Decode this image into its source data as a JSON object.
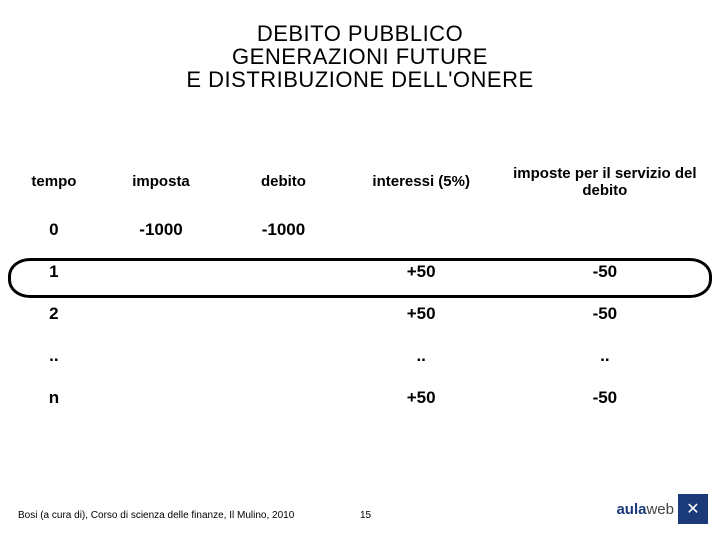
{
  "title": {
    "line1": "DEBITO PUBBLICO",
    "line2": "GENERAZIONI FUTURE",
    "line3": "E DISTRIBUZIONE DELL'ONERE"
  },
  "table": {
    "headers": {
      "tempo": "tempo",
      "imposta": "imposta",
      "debito": "debito",
      "interessi": "interessi (5%)",
      "imposte_servizio": "imposte per il servizio del debito"
    },
    "rows": [
      {
        "tempo": "0",
        "imposta": "-1000",
        "debito": "-1000",
        "interessi": "",
        "imposte_servizio": ""
      },
      {
        "tempo": "1",
        "imposta": "",
        "debito": "",
        "interessi": "+50",
        "imposte_servizio": "-50"
      },
      {
        "tempo": "2",
        "imposta": "",
        "debito": "",
        "interessi": "+50",
        "imposte_servizio": "-50"
      },
      {
        "tempo": "..",
        "imposta": "",
        "debito": "",
        "interessi": "..",
        "imposte_servizio": ".."
      },
      {
        "tempo": "n",
        "imposta": "",
        "debito": "",
        "interessi": "+50",
        "imposte_servizio": "-50"
      }
    ],
    "highlight_row_index": 1,
    "header_fontsize": 15,
    "cell_fontsize": 17,
    "text_color": "#000000",
    "highlight_border_color": "#000000",
    "highlight_border_width": 3
  },
  "footer": {
    "citation": "Bosi (a cura di), Corso di scienza delle finanze, Il Mulino, 2010",
    "page_number": "15",
    "logo": {
      "name": "aulaweb-logo",
      "part1": "aula",
      "part2": "web",
      "brand_color": "#1a3a7a",
      "icon_glyph": "✕"
    }
  },
  "background_color": "#ffffff"
}
